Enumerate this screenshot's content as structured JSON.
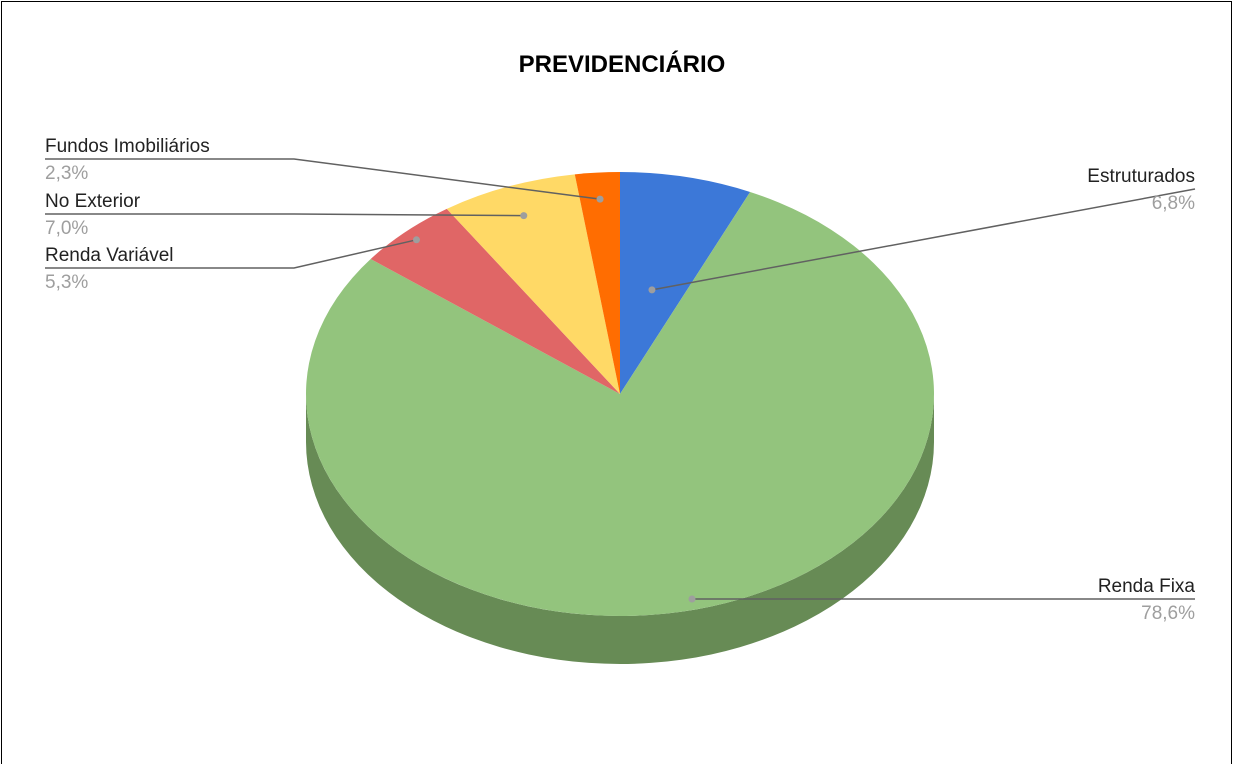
{
  "chart_data": {
    "type": "pie",
    "title": "PREVIDENCIÁRIO",
    "is_3d": true,
    "legend": "labels with leader lines",
    "slices": [
      {
        "name": "Estruturados",
        "value": 6.8,
        "value_label": "6,8%",
        "color": "#3c78d8"
      },
      {
        "name": "Renda Fixa",
        "value": 78.6,
        "value_label": "78,6%",
        "color": "#93c47d"
      },
      {
        "name": "Renda Variável",
        "value": 5.3,
        "value_label": "5,3%",
        "color": "#e06666"
      },
      {
        "name": "No Exterior",
        "value": 7.0,
        "value_label": "7,0%",
        "color": "#ffd966"
      },
      {
        "name": "Fundos Imobiliários",
        "value": 2.3,
        "value_label": "2,3%",
        "color": "#ff6d01"
      }
    ],
    "side_color": "#678b55"
  }
}
